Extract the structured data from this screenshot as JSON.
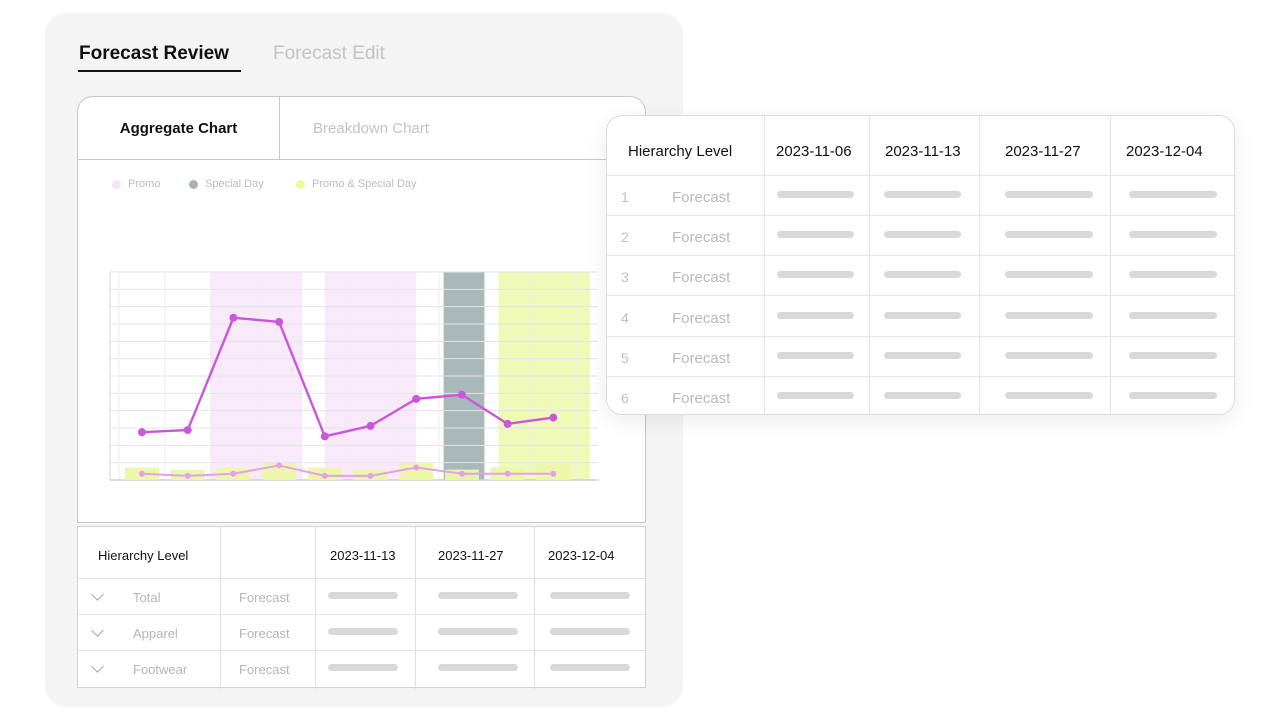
{
  "tabs": {
    "active": "Forecast Review",
    "inactive": "Forecast Edit"
  },
  "chart_tabs": {
    "active": "Aggregate Chart",
    "inactive": "Breakdown Chart"
  },
  "legend": [
    {
      "label": "Promo",
      "color": "#f6e4f8"
    },
    {
      "label": "Special Day",
      "color": "#a4b4b4"
    },
    {
      "label": "Promo & Special Day",
      "color": "#eef9a0"
    }
  ],
  "colors": {
    "forecast_line": "#cc55dd",
    "actual_line": "#e3a0ec",
    "promo": "#f8eafa",
    "special_day": "#a9b9b9",
    "promo_special": "#eff9b8",
    "volume_bar": "#ecf7a8"
  },
  "chart_data": {
    "type": "line",
    "x": [
      1,
      2,
      3,
      4,
      5,
      6,
      7,
      8,
      9,
      10
    ],
    "series": [
      {
        "values": [
          23,
          24,
          78,
          76,
          21,
          26,
          39,
          41,
          27,
          30
        ]
      },
      {
        "values": [
          3,
          2,
          3,
          7,
          2,
          2,
          6,
          3,
          3,
          3
        ]
      }
    ],
    "volume": [
      6,
      5,
      6,
      8,
      6,
      5,
      8,
      5,
      6,
      8
    ],
    "shaded_regions": [
      {
        "type": "Promo",
        "from": 2.5,
        "to": 4.5
      },
      {
        "type": "Promo",
        "from": 5.0,
        "to": 7.0
      },
      {
        "type": "Special Day",
        "from": 7.6,
        "to": 8.5
      },
      {
        "type": "Promo & Special Day",
        "from": 8.8,
        "to": 10.8
      }
    ],
    "ylim": [
      0,
      100
    ],
    "grid": true,
    "legend_position": "top-left"
  },
  "bottom_table": {
    "headers": [
      "Hierarchy Level",
      "2023-11-13",
      "2023-11-27",
      "2023-12-04"
    ],
    "rows": [
      {
        "name": "Total",
        "type": "Forecast"
      },
      {
        "name": "Apparel",
        "type": "Forecast"
      },
      {
        "name": "Footwear",
        "type": "Forecast"
      }
    ]
  },
  "float_table": {
    "headers": [
      "Hierarchy Level",
      "2023-11-06",
      "2023-11-13",
      "2023-11-27",
      "2023-12-04"
    ],
    "rows": [
      {
        "num": "1",
        "type": "Forecast"
      },
      {
        "num": "2",
        "type": "Forecast"
      },
      {
        "num": "3",
        "type": "Forecast"
      },
      {
        "num": "4",
        "type": "Forecast"
      },
      {
        "num": "5",
        "type": "Forecast"
      },
      {
        "num": "6",
        "type": "Forecast"
      }
    ]
  }
}
